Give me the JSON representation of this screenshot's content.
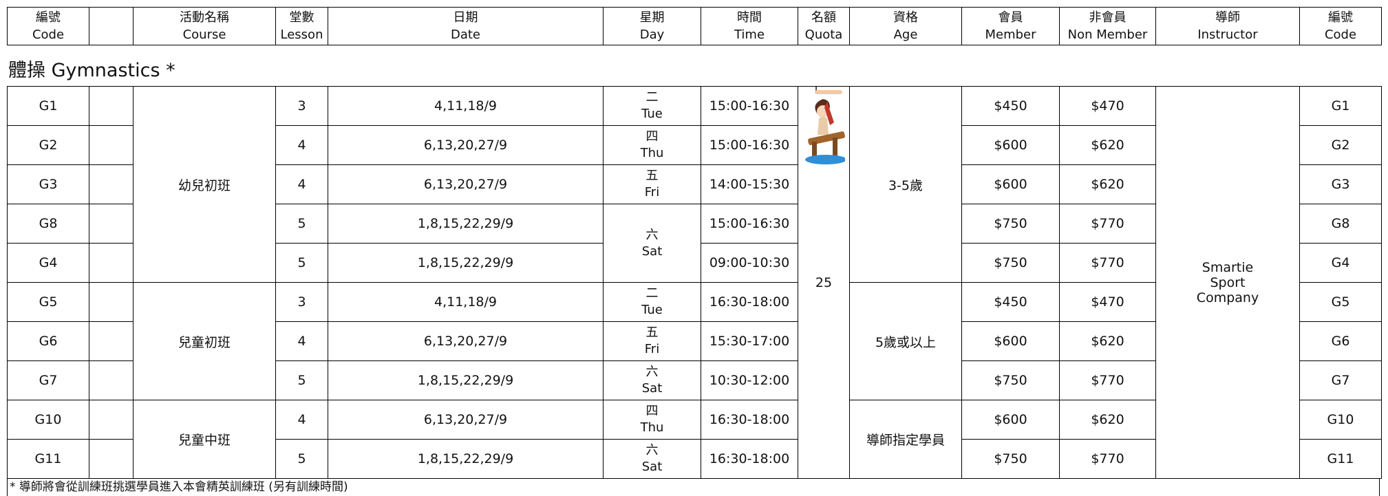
{
  "header": {
    "columns": [
      {
        "zh": "編號",
        "en": "Code"
      },
      {
        "zh": "活動名稱",
        "en": "Course"
      },
      {
        "zh": "堂數",
        "en": "Lesson"
      },
      {
        "zh": "日期",
        "en": "Date"
      },
      {
        "zh": "星期",
        "en": "Day"
      },
      {
        "zh": "時間",
        "en": "Time"
      },
      {
        "zh": "名額",
        "en": "Quota"
      },
      {
        "zh": "資格",
        "en": "Age"
      },
      {
        "zh": "會員",
        "en": "Member"
      },
      {
        "zh": "非會員",
        "en": "Non Member"
      },
      {
        "zh": "導師",
        "en": "Instructor"
      },
      {
        "zh": "編號",
        "en": "Code"
      }
    ]
  },
  "section": {
    "title": "體操 Gymnastics *",
    "quota": 25,
    "instructor": "Smartie Sport Company",
    "courses": [
      {
        "name": "幼兒初班",
        "age": "3-5歲",
        "days": [
          {
            "zh": "二",
            "en": "Tue",
            "rows": [
              {
                "code": "G1",
                "lesson": 3,
                "date": "4,11,18/9",
                "time": "15:00-16:30",
                "member": "$450",
                "non_member": "$470"
              }
            ]
          },
          {
            "zh": "四",
            "en": "Thu",
            "rows": [
              {
                "code": "G2",
                "lesson": 4,
                "date": "6,13,20,27/9",
                "time": "15:00-16:30",
                "member": "$600",
                "non_member": "$620"
              }
            ]
          },
          {
            "zh": "五",
            "en": "Fri",
            "rows": [
              {
                "code": "G3",
                "lesson": 4,
                "date": "6,13,20,27/9",
                "time": "14:00-15:30",
                "member": "$600",
                "non_member": "$620"
              }
            ]
          },
          {
            "zh": "六",
            "en": "Sat",
            "rows": [
              {
                "code": "G8",
                "lesson": 5,
                "date": "1,8,15,22,29/9",
                "time": "15:00-16:30",
                "member": "$750",
                "non_member": "$770"
              },
              {
                "code": "G4",
                "lesson": 5,
                "date": "1,8,15,22,29/9",
                "time": "09:00-10:30",
                "member": "$750",
                "non_member": "$770"
              }
            ]
          }
        ]
      },
      {
        "name": "兒童初班",
        "age": "5歲或以上",
        "days": [
          {
            "zh": "二",
            "en": "Tue",
            "rows": [
              {
                "code": "G5",
                "lesson": 3,
                "date": "4,11,18/9",
                "time": "16:30-18:00",
                "member": "$450",
                "non_member": "$470"
              }
            ]
          },
          {
            "zh": "五",
            "en": "Fri",
            "rows": [
              {
                "code": "G6",
                "lesson": 4,
                "date": "6,13,20,27/9",
                "time": "15:30-17:00",
                "member": "$600",
                "non_member": "$620"
              }
            ]
          },
          {
            "zh": "六",
            "en": "Sat",
            "rows": [
              {
                "code": "G7",
                "lesson": 5,
                "date": "1,8,15,22,29/9",
                "time": "10:30-12:00",
                "member": "$750",
                "non_member": "$770"
              }
            ]
          }
        ]
      },
      {
        "name": "兒童中班",
        "age": "導師指定學員",
        "days": [
          {
            "zh": "四",
            "en": "Thu",
            "rows": [
              {
                "code": "G10",
                "lesson": 4,
                "date": "6,13,20,27/9",
                "time": "16:30-18:00",
                "member": "$600",
                "non_member": "$620"
              }
            ]
          },
          {
            "zh": "六",
            "en": "Sat",
            "rows": [
              {
                "code": "G11",
                "lesson": 5,
                "date": "1,8,15,22,29/9",
                "time": "16:30-18:00",
                "member": "$750",
                "non_member": "$770"
              }
            ]
          }
        ]
      }
    ],
    "footnote": "* 導師將會從訓練班挑選學員進入本會精英訓練班 (另有訓練時間)"
  }
}
